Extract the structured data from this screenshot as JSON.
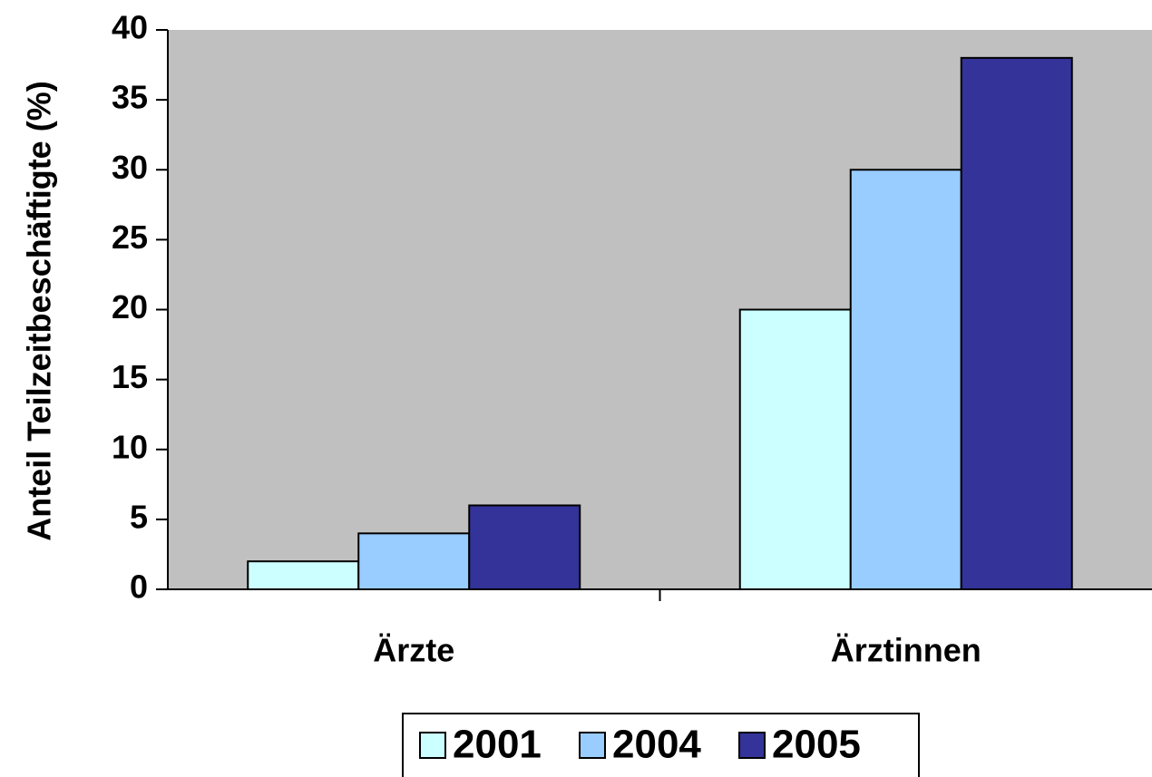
{
  "chart_data": {
    "type": "bar",
    "y_label": "Anteil Teilzeitbeschäftigte (%)",
    "categories": [
      "Ärzte",
      "Ärztinnen"
    ],
    "series": [
      {
        "name": "2001",
        "color": "#ccffff",
        "values": [
          2,
          20
        ]
      },
      {
        "name": "2004",
        "color": "#99ccff",
        "values": [
          4,
          30
        ]
      },
      {
        "name": "2005",
        "color": "#333399",
        "values": [
          6,
          38
        ]
      }
    ],
    "ylim": [
      0,
      40
    ],
    "yticks": [
      0,
      5,
      10,
      15,
      20,
      25,
      30,
      35,
      40
    ],
    "grid": false,
    "plot_background": "#c0c0c0",
    "legend": "bottom"
  }
}
